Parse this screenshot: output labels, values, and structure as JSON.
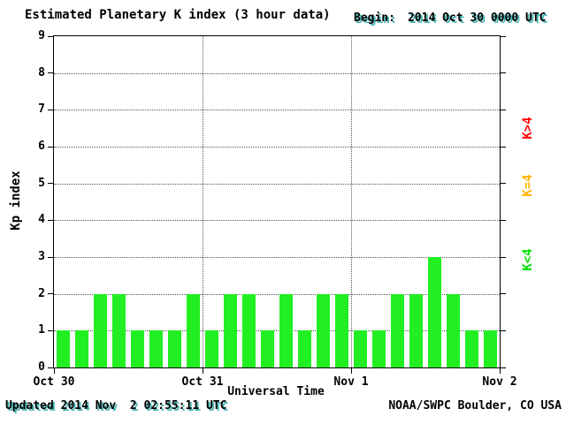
{
  "header": {
    "title": "Estimated Planetary K index (3 hour data)",
    "begin_label": "Begin:",
    "begin_value": "2014 Oct 30 0000 UTC"
  },
  "axes": {
    "ylabel": "Kp index",
    "xlabel": "Universal Time"
  },
  "footer": {
    "updated": "Updated 2014 Nov  2 02:55:11 UTC",
    "credit": "NOAA/SWPC Boulder, CO USA"
  },
  "colors": {
    "red": "#ff0000",
    "yellow": "#ffb300",
    "green": "#00e100",
    "bar_green": "#22ef22",
    "shadow": "#45b5b5"
  },
  "legend": [
    {
      "label": "K>4",
      "color": "#ff0000"
    },
    {
      "label": "K=4",
      "color": "#ffb300"
    },
    {
      "label": "K<4",
      "color": "#00e100"
    }
  ],
  "chart_data": {
    "type": "bar",
    "title": "Estimated Planetary K index (3 hour data)",
    "xlabel": "Universal Time",
    "ylabel": "Kp index",
    "ylim": [
      0,
      9
    ],
    "grid": "dotted horizontal at each integer, dotted vertical at day boundaries",
    "legend_position": "right, rotated",
    "x_tick_labels": [
      "Oct 30",
      "Oct 31",
      "Nov 1",
      "Nov 2"
    ],
    "bar_color_rule": "green if K<4, yellow if K=4, red if K>4",
    "categories": [
      "Oct 30 0000",
      "Oct 30 0300",
      "Oct 30 0600",
      "Oct 30 0900",
      "Oct 30 1200",
      "Oct 30 1500",
      "Oct 30 1800",
      "Oct 30 2100",
      "Oct 31 0000",
      "Oct 31 0300",
      "Oct 31 0600",
      "Oct 31 0900",
      "Oct 31 1200",
      "Oct 31 1500",
      "Oct 31 1800",
      "Oct 31 2100",
      "Nov 1 0000",
      "Nov 1 0300",
      "Nov 1 0600",
      "Nov 1 0900",
      "Nov 1 1200",
      "Nov 1 1500",
      "Nov 1 1800",
      "Nov 1 2100"
    ],
    "values": [
      1,
      1,
      2,
      2,
      1,
      1,
      1,
      2,
      1,
      2,
      2,
      1,
      2,
      1,
      2,
      2,
      1,
      1,
      2,
      2,
      3,
      2,
      1,
      1
    ]
  }
}
